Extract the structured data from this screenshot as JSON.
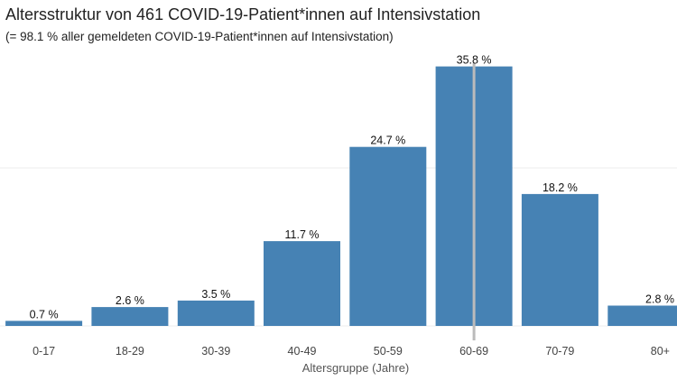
{
  "chart_data": {
    "type": "bar",
    "title": "Altersstruktur von 461 COVID-19-Patient*innen auf Intensivstation",
    "subtitle": "(= 98.1 % aller gemeldeten COVID-19-Patient*innen auf Intensivstation)",
    "xlabel": "Altersgruppe (Jahre)",
    "ylabel": "",
    "categories": [
      "0-17",
      "18-29",
      "30-39",
      "40-49",
      "50-59",
      "60-69",
      "70-79",
      "80+"
    ],
    "values": [
      0.7,
      2.6,
      3.5,
      11.7,
      24.7,
      35.8,
      18.2,
      2.8
    ],
    "data_labels": [
      "0.7 %",
      "2.6 %",
      "3.5 %",
      "11.7 %",
      "24.7 %",
      "35.8 %",
      "18.2 %",
      "2.8 %"
    ],
    "ylim": [
      0,
      36
    ],
    "grid": true,
    "bar_color": "#4682b4",
    "marker_color": "#bbbbbb",
    "marker_category": "60-69"
  }
}
